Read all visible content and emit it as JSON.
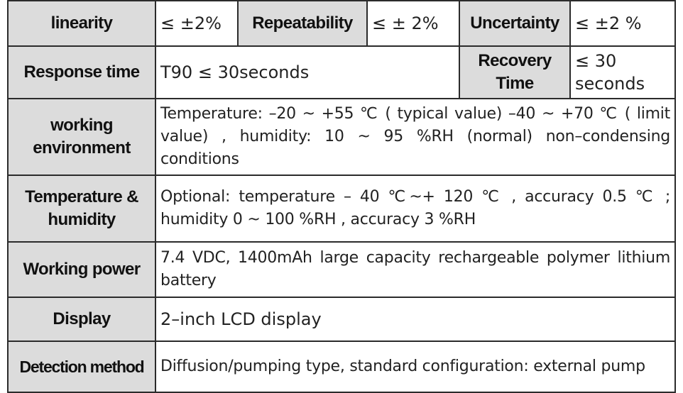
{
  "rows": {
    "linearity": {
      "label": "linearity",
      "value": "≤ ±2%"
    },
    "repeatability": {
      "label": "Repeatability",
      "value": "≤ ± 2%"
    },
    "uncertainty": {
      "label": "Uncertainty",
      "value": "≤ ±2 %"
    },
    "response_time": {
      "label": "Response time",
      "value": "T90 ≤ 30seconds"
    },
    "recovery_time": {
      "label_line1": "Recovery",
      "label_line2": "Time",
      "value_line1": "≤ 30",
      "value_line2": "seconds"
    },
    "working_environment": {
      "label_line1": "working",
      "label_line2": "environment",
      "value": "Temperature: –20 ~ +55  ℃ ( typical value) –40 ~ +70 ℃ ( limit value) , humidity: 10 ~ 95 %RH (normal) non–condensing conditions"
    },
    "temperature_humidity": {
      "label_line1": "Temperature &",
      "label_line2": "humidity",
      "value": "Optional: temperature – 40 ℃~+ 120 ℃ , accuracy 0.5 ℃ ; humidity 0 ~ 100 %RH , accuracy 3 %RH"
    },
    "working_power": {
      "label": "Working power",
      "value": "7.4 VDC, 1400mAh large capacity rechargeable polymer lithium battery"
    },
    "display": {
      "label": "Display",
      "value": "2–inch LCD display"
    },
    "detection_method": {
      "label": "Detection method",
      "value": "Diffusion/pumping type, standard configuration: external pump"
    }
  }
}
